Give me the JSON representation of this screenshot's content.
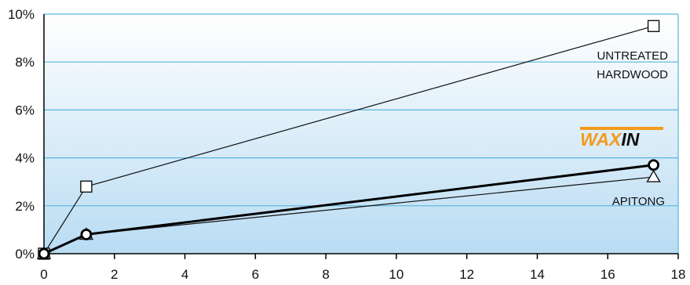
{
  "chart_data": {
    "type": "line",
    "x_ticks": [
      "0",
      "2",
      "4",
      "6",
      "8",
      "10",
      "12",
      "14",
      "16",
      "18"
    ],
    "y_ticks": [
      "0%",
      "2%",
      "4%",
      "6%",
      "8%",
      "10%"
    ],
    "xlim": [
      0,
      18
    ],
    "ylim": [
      0,
      10
    ],
    "grid": true,
    "series": [
      {
        "name": "UNTREATED HARDWOOD",
        "marker": "square",
        "color": "#111111",
        "x": [
          0,
          1.2,
          17.3
        ],
        "y": [
          0,
          2.8,
          9.5
        ]
      },
      {
        "name": "APITONG",
        "marker": "triangle",
        "color": "#111111",
        "x": [
          0,
          1.2,
          17.3
        ],
        "y": [
          0,
          0.8,
          3.2
        ]
      },
      {
        "name": "WAXIN",
        "marker": "circle",
        "color": "#000000",
        "x": [
          0,
          1.2,
          17.3
        ],
        "y": [
          0,
          0.8,
          3.7
        ]
      }
    ],
    "annotations": {
      "untreated_line1": "UNTREATED",
      "untreated_line2": "HARDWOOD",
      "apitong": "APITONG",
      "logo_part1": "WAX",
      "logo_part2": "IN"
    },
    "colors": {
      "background_top": "#ffffff",
      "background_bottom": "#b9dcf3",
      "gridline": "#5bb5dc",
      "logo_orange": "#f39a1e",
      "logo_black": "#111111"
    }
  }
}
